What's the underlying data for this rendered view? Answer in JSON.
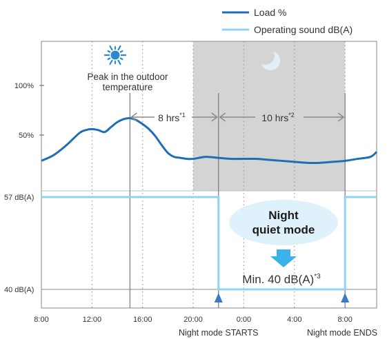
{
  "chart_data": {
    "type": "line",
    "legend": [
      {
        "label": "Load %",
        "color": "#1f6db5",
        "series": "load"
      },
      {
        "label": "Operating sound dB(A)",
        "color": "#8fd3f4",
        "series": "sound"
      }
    ],
    "legend_position": "top-right",
    "x_ticks": [
      "8:00",
      "12:00",
      "16:00",
      "20:00",
      "0:00",
      "4:00",
      "8:00"
    ],
    "x_tick_hours": [
      8,
      12,
      16,
      20,
      24,
      28,
      32
    ],
    "x_range_hours": [
      8,
      34.5
    ],
    "load_axis_ticks": [
      {
        "label": "100%",
        "value": 100
      },
      {
        "label": "50%",
        "value": 50
      }
    ],
    "load_range": [
      0,
      125
    ],
    "sound_axis_ticks": [
      {
        "label": "57 dB(A)",
        "value": 57
      },
      {
        "label": "40 dB(A)",
        "value": 40
      }
    ],
    "sound_range": [
      38,
      74
    ],
    "series": [
      {
        "name": "Load %",
        "key": "load",
        "x_hours": [
          8,
          9,
          10,
          11,
          11.5,
          12,
          12.5,
          13,
          13.5,
          14,
          14.5,
          15,
          15.5,
          16,
          16.5,
          17,
          17.5,
          18,
          18.5,
          19,
          19.5,
          20,
          21,
          22,
          23,
          24,
          25,
          26,
          27,
          28,
          29,
          30,
          31,
          32,
          33,
          34,
          34.5
        ],
        "values": [
          24,
          30,
          40,
          52,
          55,
          56,
          55,
          53,
          58,
          63,
          66,
          67,
          65,
          61,
          56,
          49,
          40,
          32,
          28,
          27,
          26,
          26,
          28,
          27,
          26,
          26,
          26,
          25,
          24,
          23,
          22,
          22,
          23,
          24,
          26,
          28,
          33
        ]
      },
      {
        "name": "Operating sound dB(A)",
        "key": "sound",
        "x_hours": [
          8,
          22,
          22,
          32,
          32,
          34.5
        ],
        "values": [
          57,
          57,
          40,
          40,
          57,
          57
        ]
      }
    ]
  },
  "annotations": {
    "peak_label": "Peak in the outdoor temperature",
    "hrs8": "8 hrs",
    "hrs8_note": "*1",
    "hrs10": "10 hrs",
    "hrs10_note": "*2",
    "badge_line1": "Night",
    "badge_line2": "quiet mode",
    "min_label": "Min. 40 dB(A)",
    "min_note": "*3",
    "night_starts": "Night mode STARTS",
    "night_ends": "Night mode ENDS"
  },
  "night_shading_hours": [
    20,
    32
  ],
  "peak_hour": 15,
  "colors": {
    "load": "#1f6db5",
    "sound": "#8fd3f4",
    "night_shade": "#d4d4d4",
    "badge": "#dff1fb",
    "arrow": "#3ab3ea",
    "marker": "#3a79c4",
    "sun": "#2a8ad1",
    "moon": "#dff0fb"
  }
}
